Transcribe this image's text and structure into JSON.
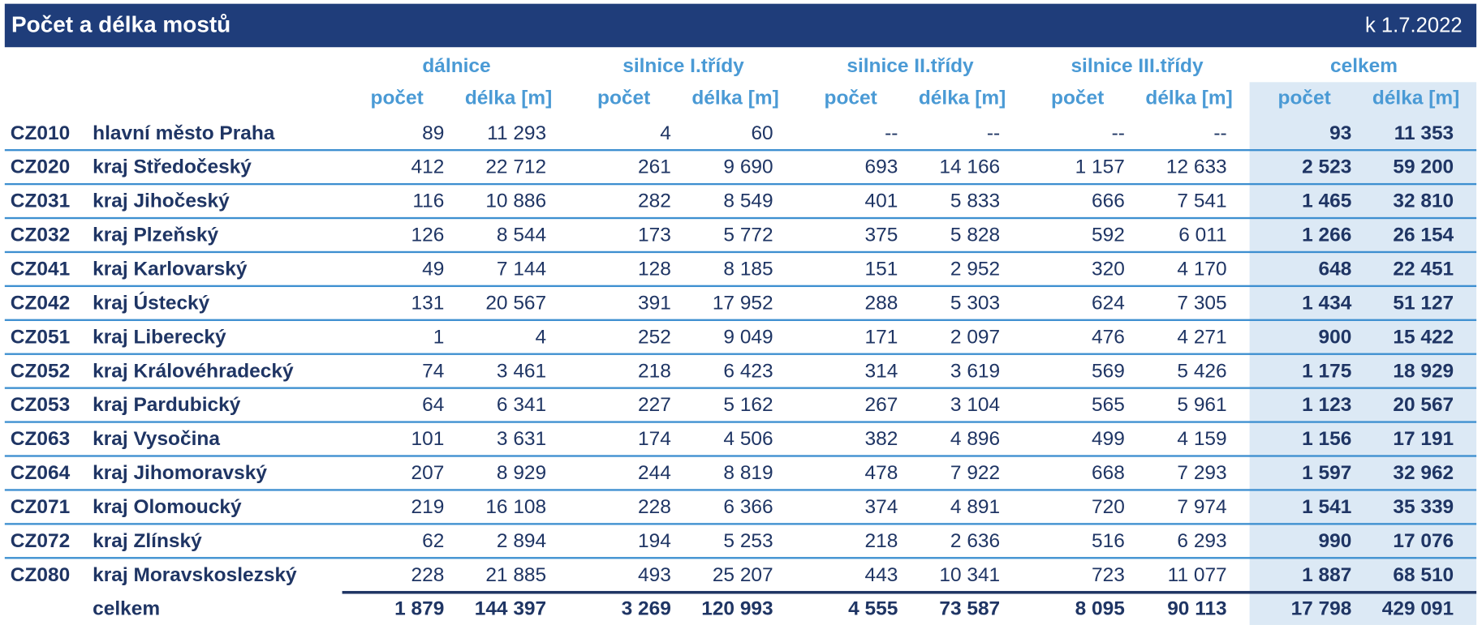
{
  "header": {
    "title": "Počet a délka mostů",
    "date": "k 1.7.2022"
  },
  "table": {
    "groups": [
      "dálnice",
      "silnice I.třídy",
      "silnice II.třídy",
      "silnice III.třídy",
      "celkem"
    ],
    "subheaders": [
      "počet",
      "délka [m]",
      "počet",
      "délka [m]",
      "počet",
      "délka [m]",
      "počet",
      "délka [m]",
      "počet",
      "délka [m]"
    ],
    "rows": [
      [
        "CZ010",
        "hlavní město Praha",
        "89",
        "11 293",
        "4",
        "60",
        "--",
        "--",
        "--",
        "--",
        "93",
        "11 353"
      ],
      [
        "CZ020",
        "kraj Středočeský",
        "412",
        "22 712",
        "261",
        "9 690",
        "693",
        "14 166",
        "1 157",
        "12 633",
        "2 523",
        "59 200"
      ],
      [
        "CZ031",
        "kraj Jihočeský",
        "116",
        "10 886",
        "282",
        "8 549",
        "401",
        "5 833",
        "666",
        "7 541",
        "1 465",
        "32 810"
      ],
      [
        "CZ032",
        "kraj Plzeňský",
        "126",
        "8 544",
        "173",
        "5 772",
        "375",
        "5 828",
        "592",
        "6 011",
        "1 266",
        "26 154"
      ],
      [
        "CZ041",
        "kraj Karlovarský",
        "49",
        "7 144",
        "128",
        "8 185",
        "151",
        "2 952",
        "320",
        "4 170",
        "648",
        "22 451"
      ],
      [
        "CZ042",
        "kraj Ústecký",
        "131",
        "20 567",
        "391",
        "17 952",
        "288",
        "5 303",
        "624",
        "7 305",
        "1 434",
        "51 127"
      ],
      [
        "CZ051",
        "kraj Liberecký",
        "1",
        "4",
        "252",
        "9 049",
        "171",
        "2 097",
        "476",
        "4 271",
        "900",
        "15 422"
      ],
      [
        "CZ052",
        "kraj Královéhradecký",
        "74",
        "3 461",
        "218",
        "6 423",
        "314",
        "3 619",
        "569",
        "5 426",
        "1 175",
        "18 929"
      ],
      [
        "CZ053",
        "kraj Pardubický",
        "64",
        "6 341",
        "227",
        "5 162",
        "267",
        "3 104",
        "565",
        "5 961",
        "1 123",
        "20 567"
      ],
      [
        "CZ063",
        "kraj Vysočina",
        "101",
        "3 631",
        "174",
        "4 506",
        "382",
        "4 896",
        "499",
        "4 159",
        "1 156",
        "17 191"
      ],
      [
        "CZ064",
        "kraj Jihomoravský",
        "207",
        "8 929",
        "244",
        "8 819",
        "478",
        "7 922",
        "668",
        "7 293",
        "1 597",
        "32 962"
      ],
      [
        "CZ071",
        "kraj Olomoucký",
        "219",
        "16 108",
        "228",
        "6 366",
        "374",
        "4 891",
        "720",
        "7 974",
        "1 541",
        "35 339"
      ],
      [
        "CZ072",
        "kraj Zlínský",
        "62",
        "2 894",
        "194",
        "5 253",
        "218",
        "2 636",
        "516",
        "6 293",
        "990",
        "17 076"
      ],
      [
        "CZ080",
        "kraj Moravskoslezský",
        "228",
        "21 885",
        "493",
        "25 207",
        "443",
        "10 341",
        "723",
        "11 077",
        "1 887",
        "68 510"
      ]
    ],
    "total": {
      "label": "celkem",
      "values": [
        "1 879",
        "144 397",
        "3 269",
        "120 993",
        "4 555",
        "73 587",
        "8 095",
        "90 113",
        "17 798",
        "429 091"
      ]
    }
  }
}
